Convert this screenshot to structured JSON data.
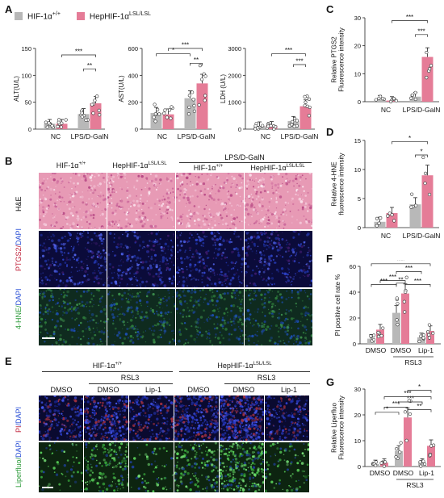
{
  "panels": {
    "A": "A",
    "B": "B",
    "C": "C",
    "D": "D",
    "E": "E",
    "F": "F",
    "G": "G"
  },
  "legend": {
    "wt": "HIF-1α",
    "wt_sup": "+/+",
    "ko": "HepHIF-1α",
    "ko_sup": "LSL/LSL",
    "wt_color": "#b8b8b8",
    "ko_color": "#e57c97"
  },
  "colors": {
    "gray": "#b8b8b8",
    "pink": "#e57c97",
    "he_bg": "#e79ab5",
    "dapi_bg": "#0b0b3a",
    "hne_bg": "#0f2b1f",
    "lip_bg": "#0d2410"
  },
  "sig": {
    "three": "***",
    "two": "**",
    "one": "*"
  },
  "chart_data": [
    {
      "type": "bar",
      "id": "alt",
      "ylabel": "ALT(U/L)",
      "ylim": [
        0,
        150
      ],
      "yticks": [
        0,
        50,
        100,
        150
      ],
      "categories": [
        "NC",
        "LPS/D-GalN"
      ],
      "series": [
        {
          "name": "HIF-1α+/+",
          "values": [
            10,
            28
          ]
        },
        {
          "name": "HepHIF-1αLSL/LSL",
          "values": [
            10,
            48
          ]
        }
      ]
    },
    {
      "type": "bar",
      "id": "ast",
      "ylabel": "AST(U/L)",
      "ylim": [
        0,
        600
      ],
      "yticks": [
        0,
        200,
        400,
        600
      ],
      "categories": [
        "NC",
        "LPS/D-GalN"
      ],
      "series": [
        {
          "name": "HIF-1α+/+",
          "values": [
            120,
            230
          ]
        },
        {
          "name": "HepHIF-1αLSL/LSL",
          "values": [
            110,
            340
          ]
        }
      ]
    },
    {
      "type": "bar",
      "id": "ldh",
      "ylabel": "LDH (U/L)",
      "ylim": [
        0,
        3000
      ],
      "yticks": [
        0,
        1000,
        2000,
        3000
      ],
      "categories": [
        "NC",
        "LPS/D-GalN"
      ],
      "series": [
        {
          "name": "HIF-1α+/+",
          "values": [
            120,
            300
          ]
        },
        {
          "name": "HepHIF-1αLSL/LSL",
          "values": [
            130,
            850
          ]
        }
      ]
    },
    {
      "type": "bar",
      "id": "ptgs2",
      "ylabel": "Relative PTGS2 Fluorescence intensity",
      "ylim": [
        0,
        30
      ],
      "yticks": [
        0,
        10,
        20,
        30
      ],
      "categories": [
        "NC",
        "LPS/D-GalN"
      ],
      "series": [
        {
          "name": "HIF-1α+/+",
          "values": [
            0.8,
            1.8
          ]
        },
        {
          "name": "HepHIF-1αLSL/LSL",
          "values": [
            0.4,
            16
          ]
        }
      ]
    },
    {
      "type": "bar",
      "id": "hne",
      "ylabel": "Relative 4-HNE fluorescence intensity",
      "ylim": [
        0,
        15
      ],
      "yticks": [
        0,
        5,
        10,
        15
      ],
      "categories": [
        "NC",
        "LPS/D-GalN"
      ],
      "series": [
        {
          "name": "HIF-1α+/+",
          "values": [
            1,
            4
          ]
        },
        {
          "name": "HepHIF-1αLSL/LSL",
          "values": [
            2.5,
            9
          ]
        }
      ]
    },
    {
      "type": "bar",
      "id": "pi",
      "ylabel": "PI positive cell rate %",
      "ylim": [
        0,
        60
      ],
      "yticks": [
        0,
        20,
        40,
        60
      ],
      "categories": [
        "DMSO",
        "DMSO",
        "Lip-1"
      ],
      "group_label": "RSL3",
      "series": [
        {
          "name": "HIF-1α+/+",
          "values": [
            4,
            24,
            5
          ]
        },
        {
          "name": "HepHIF-1αLSL/LSL",
          "values": [
            11,
            39,
            10
          ]
        }
      ]
    },
    {
      "type": "bar",
      "id": "liperfluo",
      "ylabel": "Relative Liperfluo Fluorescence intensity",
      "ylim": [
        0,
        30
      ],
      "yticks": [
        0,
        10,
        20,
        30
      ],
      "categories": [
        "DMSO",
        "DMSO",
        "Lip-1"
      ],
      "group_label": "RSL3",
      "series": [
        {
          "name": "HIF-1α+/+",
          "values": [
            1,
            6,
            1.5
          ]
        },
        {
          "name": "HepHIF-1αLSL/LSL",
          "values": [
            1.5,
            19,
            8
          ]
        }
      ]
    }
  ],
  "panelB": {
    "wt_label": "HIF-1α",
    "wt_sup": "+/+",
    "ko_label": "HepHIF-1α",
    "ko_sup": "LSL/LSL",
    "group_label": "LPS/D-GalN",
    "row1": "H&E",
    "row2a": "PTGS2/",
    "row2b": "DAPI",
    "row3a": "4-HNE/",
    "row3b": "DAPI"
  },
  "panelE": {
    "wt_label": "HIF-1α",
    "wt_sup": "+/+",
    "ko_label": "HepHIF-1α",
    "ko_sup": "LSL/LSL",
    "rsl3": "RSL3",
    "dmso": "DMSO",
    "lip1": "Lip-1",
    "row1a": "PI",
    "row1b": "/DAPI",
    "row2a": "Liperfluo/",
    "row2b": "DAPI"
  }
}
